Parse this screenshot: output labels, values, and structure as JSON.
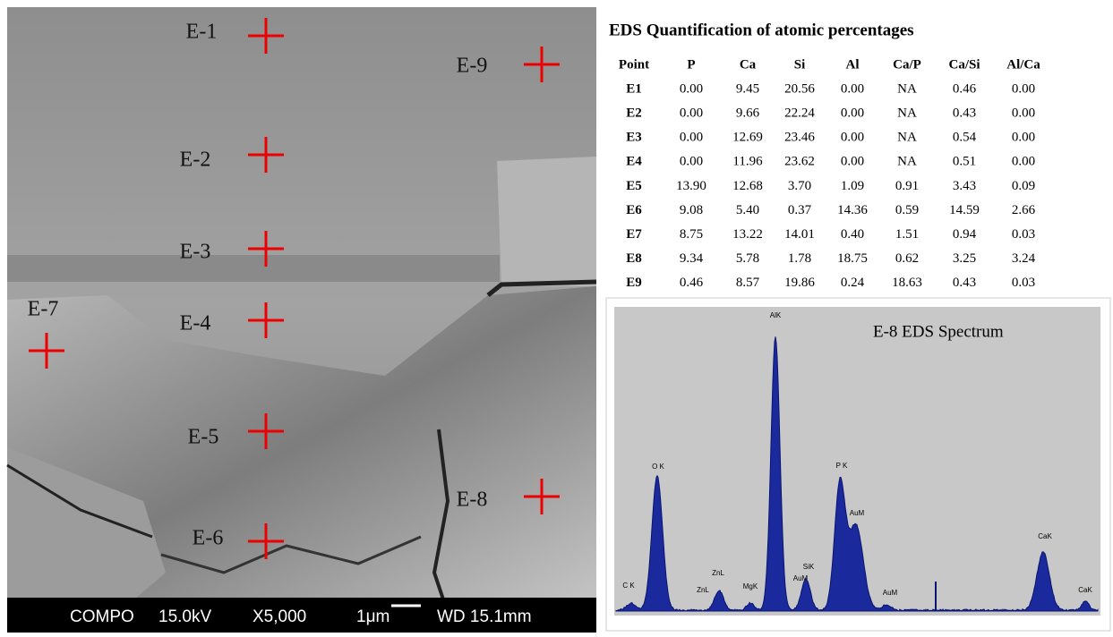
{
  "sem_image": {
    "markers": [
      {
        "label": "E-1"
      },
      {
        "label": "E-2"
      },
      {
        "label": "E-3"
      },
      {
        "label": "E-4"
      },
      {
        "label": "E-5"
      },
      {
        "label": "E-6"
      },
      {
        "label": "E-7"
      },
      {
        "label": "E-8"
      },
      {
        "label": "E-9"
      }
    ],
    "info_bar": [
      "COMPO",
      "15.0kV",
      "X5,000",
      "1μm",
      "WD 15.1mm"
    ]
  },
  "table": {
    "title": "EDS Quantification of atomic percentages",
    "header": [
      "Point",
      "P",
      "Ca",
      "Si",
      "Al",
      "Ca/P",
      "Ca/Si",
      "Al/Ca"
    ],
    "rows": [
      [
        "E1",
        "0.00",
        "9.45",
        "20.56",
        "0.00",
        "NA",
        "0.46",
        "0.00"
      ],
      [
        "E2",
        "0.00",
        "9.66",
        "22.24",
        "0.00",
        "NA",
        "0.43",
        "0.00"
      ],
      [
        "E3",
        "0.00",
        "12.69",
        "23.46",
        "0.00",
        "NA",
        "0.54",
        "0.00"
      ],
      [
        "E4",
        "0.00",
        "11.96",
        "23.62",
        "0.00",
        "NA",
        "0.51",
        "0.00"
      ],
      [
        "E5",
        "13.90",
        "12.68",
        "3.70",
        "1.09",
        "0.91",
        "3.43",
        "0.09"
      ],
      [
        "E6",
        "9.08",
        "5.40",
        "0.37",
        "14.36",
        "0.59",
        "14.59",
        "2.66"
      ],
      [
        "E7",
        "8.75",
        "13.22",
        "14.01",
        "0.40",
        "1.51",
        "0.94",
        "0.03"
      ],
      [
        "E8",
        "9.34",
        "5.78",
        "1.78",
        "18.75",
        "0.62",
        "3.25",
        "3.24"
      ],
      [
        "E9",
        "0.46",
        "8.57",
        "19.86",
        "0.24",
        "18.63",
        "0.43",
        "0.03"
      ]
    ]
  },
  "spectrum": {
    "title": "E-8 EDS Spectrum",
    "peak_labels": [
      "C K",
      "O K",
      "ZnL",
      "ZnL",
      "MgK",
      "AlK",
      "AuM",
      "SiK",
      "P K",
      "AuM",
      "AuM",
      "CaK",
      "CaK"
    ]
  }
}
